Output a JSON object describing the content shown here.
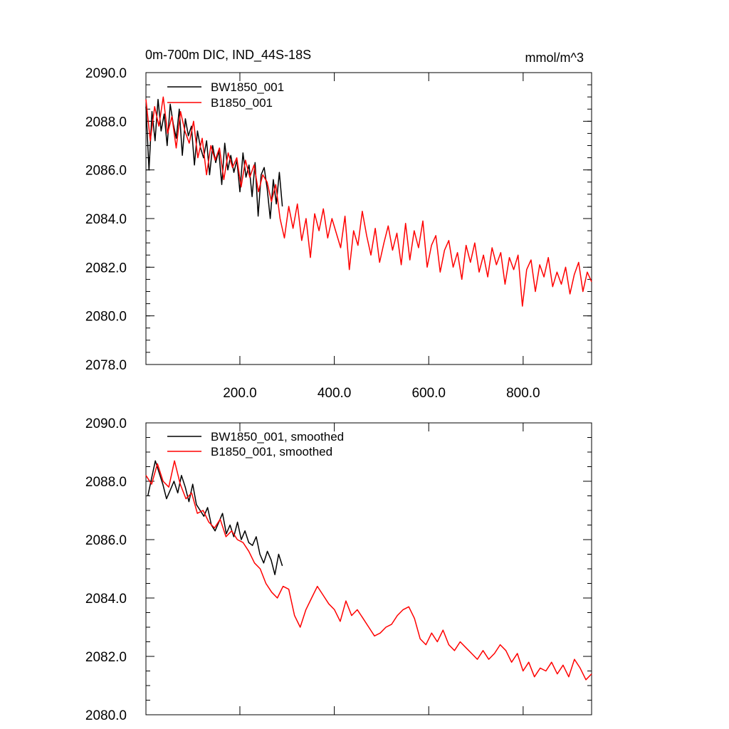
{
  "figure": {
    "title": "0m-700m DIC, IND_44S-18S",
    "units": "mmol/m^3"
  },
  "chart_data": [
    {
      "type": "line",
      "title": "0m-700m DIC, IND_44S-18S",
      "units_label": "mmol/m^3",
      "xlabel": "",
      "ylabel": "",
      "xlim": [
        1,
        945
      ],
      "ylim": [
        2078,
        2090
      ],
      "yticks": [
        2078,
        2080,
        2082,
        2084,
        2086,
        2088,
        2090
      ],
      "ytick_labels": [
        "2078.0",
        "2080.0",
        "2082.0",
        "2084.0",
        "2086.0",
        "2088.0",
        "2090.0"
      ],
      "xticks": [
        200,
        400,
        600,
        800
      ],
      "xtick_labels": [
        "200.0",
        "400.0",
        "600.0",
        "800.0"
      ],
      "legend_position": "top-left",
      "series": [
        {
          "name": "BW1850_001",
          "color": "#000000",
          "x_start": 1,
          "x_end": 290,
          "values": [
            2088.6,
            2086.0,
            2088.4,
            2087.2,
            2088.9,
            2087.6,
            2088.3,
            2087.0,
            2088.7,
            2087.9,
            2087.3,
            2088.5,
            2086.6,
            2088.1,
            2087.4,
            2087.8,
            2086.2,
            2087.6,
            2086.9,
            2086.5,
            2087.2,
            2085.8,
            2087.0,
            2086.3,
            2086.8,
            2085.4,
            2087.1,
            2086.0,
            2086.6,
            2085.9,
            2086.4,
            2085.1,
            2086.7,
            2085.7,
            2086.2,
            2084.9,
            2086.3,
            2084.1,
            2085.8,
            2086.1,
            2085.2,
            2084.0,
            2085.6,
            2084.6,
            2085.9,
            2084.5
          ]
        },
        {
          "name": "B1850_001",
          "color": "#ff0000",
          "x_start": 1,
          "x_end": 945,
          "values": [
            2088.9,
            2087.2,
            2088.6,
            2087.8,
            2089.0,
            2087.5,
            2088.2,
            2086.9,
            2088.4,
            2087.6,
            2087.1,
            2088.0,
            2086.5,
            2087.3,
            2085.8,
            2087.0,
            2086.4,
            2086.9,
            2085.6,
            2086.7,
            2086.1,
            2086.5,
            2085.3,
            2086.4,
            2085.7,
            2086.2,
            2085.1,
            2085.8,
            2085.5,
            2084.7,
            2085.4,
            2084.0,
            2083.2,
            2084.5,
            2083.6,
            2084.6,
            2083.1,
            2084.0,
            2082.4,
            2084.2,
            2083.5,
            2084.4,
            2083.2,
            2084.0,
            2083.4,
            2082.8,
            2084.1,
            2081.9,
            2083.5,
            2082.9,
            2084.3,
            2083.3,
            2082.5,
            2083.6,
            2082.2,
            2083.0,
            2083.7,
            2082.7,
            2083.4,
            2082.1,
            2083.8,
            2082.3,
            2083.5,
            2082.8,
            2083.9,
            2082.0,
            2082.9,
            2083.3,
            2081.8,
            2082.7,
            2083.1,
            2082.0,
            2082.6,
            2081.5,
            2082.9,
            2082.2,
            2083.0,
            2081.8,
            2082.5,
            2081.6,
            2082.8,
            2082.1,
            2082.6,
            2081.3,
            2082.4,
            2081.9,
            2082.5,
            2080.4,
            2081.9,
            2082.3,
            2081.0,
            2082.1,
            2081.6,
            2082.4,
            2081.2,
            2081.8,
            2081.3,
            2082.0,
            2080.9,
            2081.7,
            2082.2,
            2081.0,
            2081.8,
            2081.4
          ]
        }
      ]
    },
    {
      "type": "line",
      "title": "",
      "xlabel": "",
      "ylabel": "",
      "xlim": [
        1,
        945
      ],
      "ylim": [
        2080,
        2090
      ],
      "yticks": [
        2080,
        2082,
        2084,
        2086,
        2088,
        2090
      ],
      "ytick_labels": [
        "2080.0",
        "2082.0",
        "2084.0",
        "2086.0",
        "2088.0",
        "2090.0"
      ],
      "xticks": [
        200,
        400,
        600,
        800
      ],
      "legend_position": "top-left",
      "series": [
        {
          "name": "BW1850_001, smoothed",
          "color": "#000000",
          "x_start": 5,
          "x_end": 290,
          "values": [
            2087.5,
            2088.1,
            2088.7,
            2088.3,
            2087.9,
            2087.4,
            2087.7,
            2088.0,
            2087.6,
            2088.2,
            2087.8,
            2087.3,
            2087.9,
            2087.2,
            2087.0,
            2086.8,
            2087.1,
            2086.5,
            2086.3,
            2086.6,
            2086.9,
            2086.2,
            2086.5,
            2086.1,
            2086.6,
            2086.0,
            2086.3,
            2085.9,
            2085.8,
            2086.1,
            2085.5,
            2085.2,
            2085.6,
            2085.3,
            2084.8,
            2085.5,
            2085.1
          ]
        },
        {
          "name": "B1850_001, smoothed",
          "color": "#ff0000",
          "x_start": 1,
          "x_end": 945,
          "values": [
            2088.2,
            2087.9,
            2088.6,
            2088.0,
            2087.8,
            2088.7,
            2087.9,
            2087.4,
            2087.6,
            2086.9,
            2087.0,
            2086.6,
            2086.4,
            2086.7,
            2086.1,
            2086.3,
            2086.0,
            2085.9,
            2085.6,
            2085.2,
            2085.0,
            2084.5,
            2084.2,
            2084.0,
            2084.4,
            2084.3,
            2083.4,
            2083.0,
            2083.6,
            2084.0,
            2084.4,
            2084.1,
            2083.8,
            2083.6,
            2083.2,
            2083.9,
            2083.4,
            2083.6,
            2083.3,
            2083.0,
            2082.7,
            2082.8,
            2083.0,
            2083.1,
            2083.4,
            2083.6,
            2083.7,
            2083.3,
            2082.6,
            2082.4,
            2082.8,
            2082.5,
            2082.9,
            2082.4,
            2082.2,
            2082.5,
            2082.3,
            2082.1,
            2081.9,
            2082.2,
            2081.9,
            2082.1,
            2082.4,
            2082.2,
            2081.8,
            2082.1,
            2081.5,
            2081.8,
            2081.3,
            2081.6,
            2081.5,
            2081.8,
            2081.4,
            2081.7,
            2081.3,
            2081.9,
            2081.6,
            2081.2,
            2081.4
          ]
        }
      ]
    }
  ]
}
